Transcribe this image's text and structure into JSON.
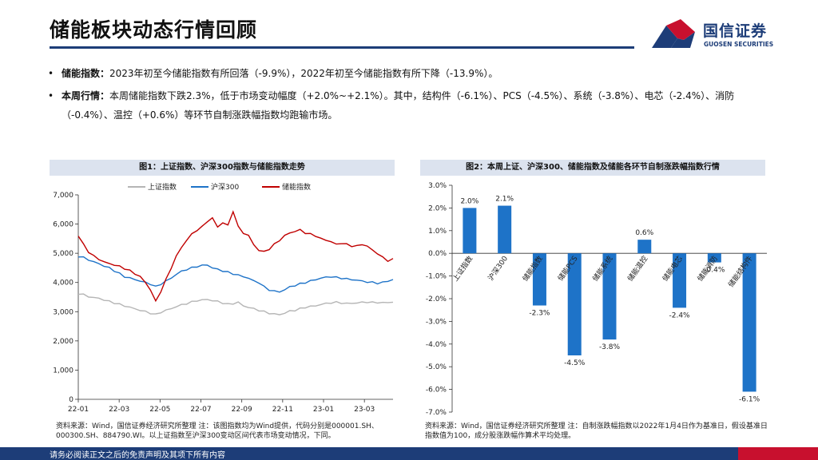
{
  "page": {
    "title": "储能板块动态行情回顾",
    "footer": "请务必阅读正文之后的免责声明及其项下所有内容"
  },
  "logo": {
    "cn": "国信证券",
    "en": "GUOSEN SECURITIES"
  },
  "bullets": [
    {
      "label": "储能指数：",
      "text": "2023年初至今储能指数有所回落（-9.9%），2022年初至今储能指数有所下降（-13.9%）。"
    },
    {
      "label": "本周行情：",
      "text": "本周储能指数下跌2.3%，低于市场变动幅度（+2.0%~+2.1%）。其中，结构件（-6.1%）、PCS（-4.5%）、系统（-3.8%）、电芯（-2.4%）、消防（-0.4%）、温控（+0.6%）等环节自制涨跌幅指数均跑输市场。"
    }
  ],
  "colors": {
    "brand": "#1d3d78",
    "accent": "#c8102e",
    "bar": "#1e73c8",
    "sse": "#b5b5b5",
    "csi300": "#1e73c8",
    "storage": "#c00000"
  },
  "figures": {
    "fig1_title": "图1：上证指数、沪深300指数与储能指数走势",
    "fig1_note": "资料来源：Wind，国信证券经济研究所整理 注：该图指数均为Wind提供，代码分别是000001.SH、000300.SH、884790.WI。以上证指数至沪深300变动区间代表市场变动情况，下同。",
    "fig2_title": "图2：本周上证、沪深300、储能指数及储能各环节自制涨跌幅指数行情",
    "fig2_note": "资料来源：Wind，国信证券经济研究所整理 注：自制涨跌幅指数以2022年1月4日作为基准日，假设基准日指数值为100，成分股涨跌幅作算术平均处理。"
  },
  "chart_data": [
    {
      "type": "line",
      "title": "图1：上证指数、沪深300指数与储能指数走势",
      "x_ticks": [
        "22-01",
        "22-03",
        "22-05",
        "22-07",
        "22-09",
        "22-11",
        "23-01",
        "23-03"
      ],
      "ylim": [
        0,
        7000
      ],
      "y_ticks": [
        "0",
        "1,000",
        "2,000",
        "3,000",
        "4,000",
        "5,000",
        "6,000",
        "7,000"
      ],
      "legend_position": "top",
      "series": [
        {
          "name": "上证指数",
          "color": "#b5b5b5",
          "values": [
            3620,
            3580,
            3520,
            3480,
            3460,
            3400,
            3350,
            3300,
            3250,
            3200,
            3150,
            3100,
            3050,
            3000,
            2950,
            2900,
            2980,
            3050,
            3100,
            3180,
            3230,
            3280,
            3330,
            3380,
            3400,
            3420,
            3380,
            3350,
            3300,
            3250,
            3280,
            3320,
            3200,
            3150,
            3100,
            3050,
            3000,
            2950,
            2920,
            2900,
            2950,
            3020,
            3050,
            3100,
            3150,
            3180,
            3200,
            3250,
            3280,
            3310,
            3320,
            3300,
            3280,
            3290,
            3300,
            3320,
            3330,
            3310,
            3320,
            3300,
            3320,
            3330
          ]
        },
        {
          "name": "沪深300",
          "color": "#1e73c8",
          "values": [
            4900,
            4850,
            4780,
            4700,
            4650,
            4560,
            4500,
            4400,
            4300,
            4200,
            4150,
            4100,
            4050,
            4000,
            3950,
            3850,
            3950,
            4050,
            4150,
            4280,
            4380,
            4450,
            4500,
            4550,
            4580,
            4600,
            4500,
            4450,
            4400,
            4350,
            4300,
            4250,
            4200,
            4150,
            4050,
            4000,
            3850,
            3750,
            3700,
            3680,
            3750,
            3850,
            3900,
            3950,
            4000,
            4050,
            4100,
            4150,
            4180,
            4200,
            4170,
            4150,
            4120,
            4100,
            4080,
            4050,
            4020,
            4000,
            3980,
            4000,
            4050,
            4100
          ]
        },
        {
          "name": "储能指数",
          "color": "#c00000",
          "values": [
            5600,
            5300,
            5050,
            4900,
            4800,
            4700,
            4650,
            4600,
            4550,
            4480,
            4400,
            4300,
            4200,
            4000,
            3750,
            3350,
            3700,
            4100,
            4500,
            4900,
            5200,
            5450,
            5650,
            5800,
            5900,
            6100,
            6200,
            5900,
            6050,
            5950,
            6450,
            5900,
            5700,
            5600,
            5300,
            5100,
            5050,
            5150,
            5300,
            5450,
            5600,
            5700,
            5750,
            5800,
            5700,
            5650,
            5600,
            5500,
            5450,
            5400,
            5300,
            5350,
            5300,
            5250,
            5250,
            5300,
            5250,
            5100,
            5000,
            4850,
            4750,
            4800
          ]
        }
      ]
    },
    {
      "type": "bar",
      "title": "图2：本周上证、沪深300、储能指数及储能各环节自制涨跌幅指数行情",
      "categories": [
        "上证指数",
        "沪深300",
        "储能指数",
        "储能PCS",
        "储能系统",
        "储能温控",
        "储能电芯",
        "储能消防",
        "储能结构件"
      ],
      "values": [
        2.0,
        2.1,
        -2.3,
        -4.5,
        -3.8,
        0.6,
        -2.4,
        -0.4,
        -6.1
      ],
      "value_labels": [
        "2.0%",
        "2.1%",
        "-2.3%",
        "-4.5%",
        "-3.8%",
        "0.6%",
        "-2.4%",
        "-0.4%",
        "-6.1%"
      ],
      "ylim": [
        -7.0,
        3.0
      ],
      "y_ticks": [
        "3.0%",
        "2.0%",
        "1.0%",
        "0.0%",
        "-1.0%",
        "-2.0%",
        "-3.0%",
        "-4.0%",
        "-5.0%",
        "-6.0%",
        "-7.0%"
      ],
      "color": "#1e73c8"
    }
  ]
}
